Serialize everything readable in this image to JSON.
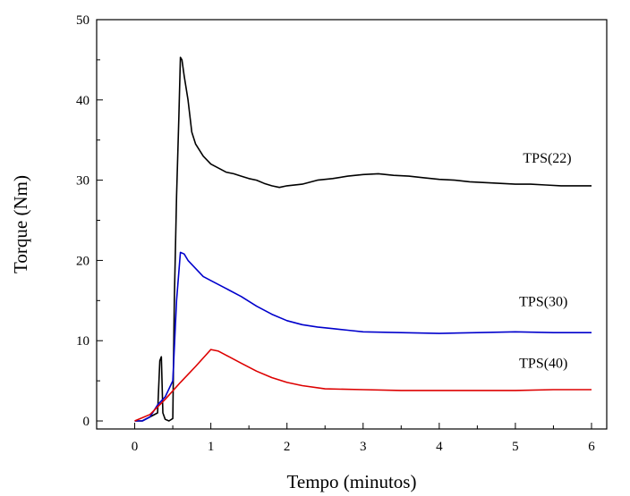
{
  "chart_data": {
    "type": "line",
    "title": "",
    "xlabel": "Tempo (minutos)",
    "ylabel": "Torque (Nm)",
    "xlim": [
      -0.5,
      6.2
    ],
    "ylim": [
      -1,
      50
    ],
    "xticks": [
      0,
      1,
      2,
      3,
      4,
      5,
      6
    ],
    "yticks": [
      0,
      10,
      20,
      30,
      40,
      50
    ],
    "grid": false,
    "legend": "none",
    "series": [
      {
        "name": "TPS(22)",
        "color": "#000000",
        "x": [
          0,
          0.1,
          0.2,
          0.3,
          0.33,
          0.35,
          0.37,
          0.4,
          0.45,
          0.5,
          0.52,
          0.55,
          0.58,
          0.6,
          0.62,
          0.65,
          0.7,
          0.75,
          0.8,
          0.9,
          1.0,
          1.1,
          1.2,
          1.3,
          1.4,
          1.5,
          1.6,
          1.7,
          1.8,
          1.9,
          2.0,
          2.2,
          2.4,
          2.6,
          2.8,
          3.0,
          3.2,
          3.4,
          3.6,
          3.8,
          4.0,
          4.2,
          4.4,
          4.6,
          4.8,
          5.0,
          5.2,
          5.4,
          5.6,
          5.8,
          6.0
        ],
        "y": [
          0,
          0,
          0.5,
          1,
          7.5,
          8,
          1,
          0.2,
          0,
          0.3,
          15,
          28,
          38,
          45.3,
          45,
          43,
          40,
          36,
          34.5,
          33,
          32,
          31.5,
          31,
          30.8,
          30.5,
          30.2,
          30,
          29.6,
          29.3,
          29.1,
          29.3,
          29.5,
          30,
          30.2,
          30.5,
          30.7,
          30.8,
          30.6,
          30.5,
          30.3,
          30.1,
          30,
          29.8,
          29.7,
          29.6,
          29.5,
          29.5,
          29.4,
          29.3,
          29.3,
          29.3
        ]
      },
      {
        "name": "TPS(30)",
        "color": "#0000cc",
        "x": [
          0,
          0.1,
          0.2,
          0.3,
          0.4,
          0.5,
          0.55,
          0.6,
          0.65,
          0.7,
          0.8,
          0.9,
          1.0,
          1.2,
          1.4,
          1.6,
          1.8,
          2.0,
          2.2,
          2.4,
          2.6,
          2.8,
          3.0,
          3.5,
          4.0,
          4.5,
          5.0,
          5.5,
          6.0
        ],
        "y": [
          0,
          0,
          0.5,
          2,
          3,
          5,
          15,
          21,
          20.8,
          20,
          19,
          18,
          17.5,
          16.5,
          15.5,
          14.3,
          13.3,
          12.5,
          12,
          11.7,
          11.5,
          11.3,
          11.1,
          11,
          10.9,
          11,
          11.1,
          11,
          11
        ]
      },
      {
        "name": "TPS(40)",
        "color": "#dd0000",
        "x": [
          0,
          0.2,
          0.4,
          0.6,
          0.8,
          1.0,
          1.1,
          1.2,
          1.4,
          1.6,
          1.8,
          2.0,
          2.2,
          2.5,
          3.0,
          3.5,
          4.0,
          4.5,
          5.0,
          5.5,
          6.0
        ],
        "y": [
          0,
          0.8,
          2.7,
          4.8,
          6.8,
          8.9,
          8.7,
          8.2,
          7.2,
          6.2,
          5.4,
          4.8,
          4.4,
          4.0,
          3.9,
          3.8,
          3.8,
          3.8,
          3.8,
          3.9,
          3.9
        ]
      }
    ],
    "annotations": [
      {
        "text": "TPS(22)",
        "x": 5.1,
        "y": 32.2
      },
      {
        "text": "TPS(30)",
        "x": 5.05,
        "y": 14.3
      },
      {
        "text": "TPS(40)",
        "x": 5.05,
        "y": 6.6
      }
    ]
  }
}
